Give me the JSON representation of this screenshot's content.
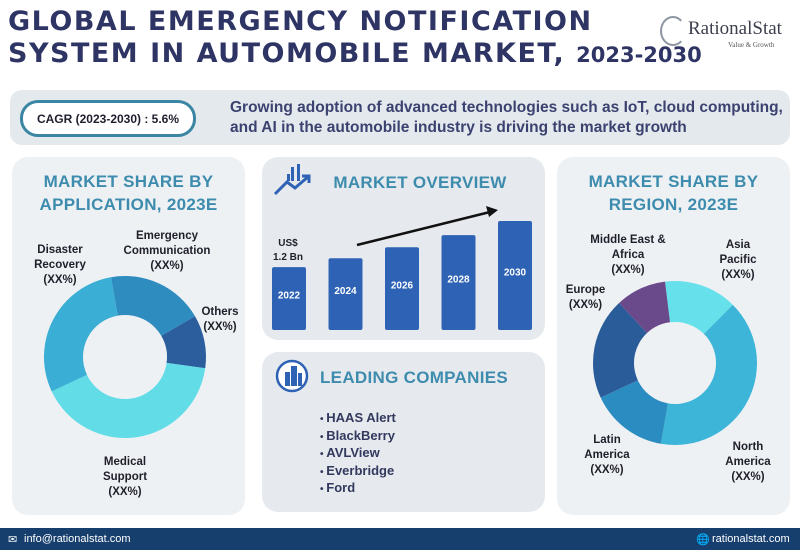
{
  "header": {
    "title_line1": "GLOBAL EMERGENCY NOTIFICATION",
    "title_line2": "SYSTEM IN AUTOMOBILE MARKET,",
    "title_years": "2023-2030"
  },
  "logo": {
    "name": "RationalStat",
    "tagline": "Value & Growth"
  },
  "banner": {
    "cagr": "CAGR (2023-2030) : 5.6%",
    "text": "Growing adoption of advanced technologies such as IoT, cloud computing, and AI in the automobile industry is driving the market growth"
  },
  "overview": {
    "title": "MARKET OVERVIEW",
    "icon": "growth-chart-icon"
  },
  "companies": {
    "title": "LEADING COMPANIES",
    "icon": "buildings-icon",
    "items": [
      "HAAS Alert",
      "BlackBerry",
      "AVLView",
      "Everbridge",
      "Ford"
    ]
  },
  "footer": {
    "email": "info@rationalstat.com",
    "website": "rationalstat.com"
  },
  "chart_data": [
    {
      "type": "pie",
      "donut": true,
      "title": "MARKET SHARE BY APPLICATION, 2023E",
      "categories": [
        "Emergency Communication",
        "Others",
        "Medical Support",
        "Disaster Recovery"
      ],
      "labels": [
        "Emergency\nCommunication\n(XX%)",
        "Others\n(XX%)",
        "Medical\nSupport\n(XX%)",
        "Disaster\nRecovery\n(XX%)"
      ],
      "values": [
        19.4,
        10.6,
        40.8,
        29.2
      ],
      "colors": [
        "#2f8cbf",
        "#2c5d9c",
        "#62dde8",
        "#3aaed4"
      ]
    },
    {
      "type": "bar",
      "title": "MARKET OVERVIEW",
      "categories": [
        "2022",
        "2024",
        "2026",
        "2028",
        "2030"
      ],
      "values": [
        1.2,
        1.37,
        1.58,
        1.81,
        2.08
      ],
      "data_labels": [
        "US$\n1.2 Bn"
      ],
      "ylabel": "",
      "xlabel": "",
      "ylim": [
        0,
        2.2
      ],
      "color": "#2e62b4",
      "trend_arrow": true
    },
    {
      "type": "pie",
      "donut": true,
      "title": "MARKET SHARE BY REGION, 2023E",
      "categories": [
        "Asia Pacific",
        "North America",
        "Latin America",
        "Europe",
        "Middle East & Africa"
      ],
      "labels": [
        "Asia\nPacific\n(XX%)",
        "North\nAmerica\n(XX%)",
        "Latin\nAmerica\n(XX%)",
        "Europe\n(XX%)",
        "Middle East &\nAfrica\n(XX%)"
      ],
      "values": [
        14.4,
        40.3,
        15.3,
        20,
        10
      ],
      "colors": [
        "#66e0ea",
        "#3db5d8",
        "#2a8cc0",
        "#2b5c9a",
        "#6a4a8a"
      ]
    }
  ]
}
